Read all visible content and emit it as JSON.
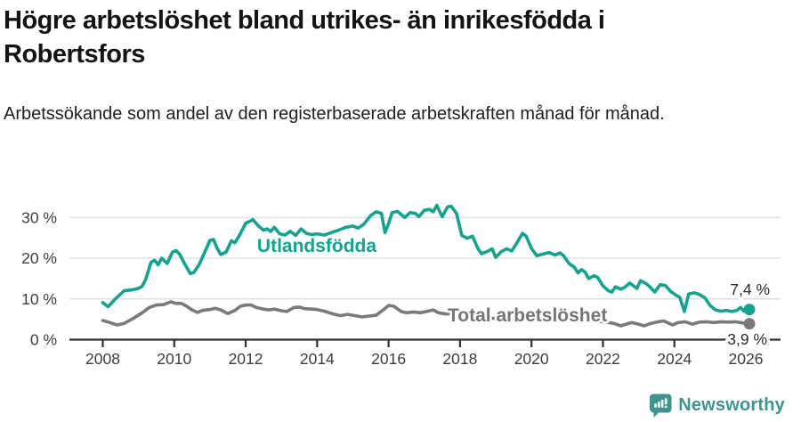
{
  "header": {
    "title": "Högre arbetslöshet bland utrikes- än inrikesfödda i Robertsfors",
    "subtitle": "Arbetssökande som andel av den registerbaserade arbetskraften månad för månad."
  },
  "chart_data": {
    "type": "line",
    "title": "Högre arbetslöshet bland utrikes- än inrikesfödda i Robertsfors",
    "subtitle": "Arbetssökande som andel av den registerbaserade arbetskraften månad för månad.",
    "unit": "%",
    "xlabel": "",
    "ylabel": "",
    "ylim": [
      0,
      35
    ],
    "xlim": [
      2007.1,
      2027.0
    ],
    "grid": true,
    "y_ticks": [
      0,
      10,
      20,
      30
    ],
    "y_tick_labels": [
      "0 %",
      "10 %",
      "20 %",
      "30 %"
    ],
    "x_ticks": [
      2008,
      2010,
      2012,
      2014,
      2016,
      2018,
      2020,
      2022,
      2024,
      2026
    ],
    "x_tick_labels": [
      "2008",
      "2010",
      "2012",
      "2014",
      "2016",
      "2018",
      "2020",
      "2022",
      "2024",
      "2026"
    ],
    "colors": {
      "gridline": "#d9d9d9",
      "baseline": "#303030",
      "axis_text": "#3d3d3d"
    },
    "series": [
      {
        "name": "Utlandsfödda",
        "color": "#14A38E",
        "end_label": "7,4 %",
        "end_value": 7.4,
        "points": [
          [
            2008.0,
            9.1
          ],
          [
            2008.15,
            8.1
          ],
          [
            2008.35,
            10.0
          ],
          [
            2008.6,
            12.0
          ],
          [
            2008.8,
            12.2
          ],
          [
            2009.0,
            12.6
          ],
          [
            2009.1,
            13.1
          ],
          [
            2009.2,
            14.8
          ],
          [
            2009.35,
            19.0
          ],
          [
            2009.45,
            19.5
          ],
          [
            2009.55,
            18.4
          ],
          [
            2009.65,
            20.0
          ],
          [
            2009.8,
            18.7
          ],
          [
            2009.95,
            21.5
          ],
          [
            2010.05,
            21.9
          ],
          [
            2010.15,
            21.0
          ],
          [
            2010.3,
            18.5
          ],
          [
            2010.45,
            16.2
          ],
          [
            2010.55,
            16.5
          ],
          [
            2010.7,
            18.5
          ],
          [
            2010.85,
            21.4
          ],
          [
            2011.0,
            24.4
          ],
          [
            2011.1,
            24.6
          ],
          [
            2011.2,
            22.5
          ],
          [
            2011.3,
            20.9
          ],
          [
            2011.45,
            21.5
          ],
          [
            2011.6,
            24.3
          ],
          [
            2011.7,
            23.8
          ],
          [
            2011.85,
            26.0
          ],
          [
            2012.0,
            28.6
          ],
          [
            2012.1,
            29.0
          ],
          [
            2012.2,
            29.5
          ],
          [
            2012.35,
            28.0
          ],
          [
            2012.5,
            26.9
          ],
          [
            2012.6,
            27.2
          ],
          [
            2012.7,
            26.6
          ],
          [
            2012.8,
            27.6
          ],
          [
            2012.95,
            26.0
          ],
          [
            2013.1,
            25.7
          ],
          [
            2013.25,
            26.6
          ],
          [
            2013.4,
            25.6
          ],
          [
            2013.55,
            27.2
          ],
          [
            2013.7,
            26.1
          ],
          [
            2013.85,
            25.8
          ],
          [
            2014.0,
            26.0
          ],
          [
            2014.2,
            25.7
          ],
          [
            2014.4,
            26.3
          ],
          [
            2014.6,
            26.9
          ],
          [
            2014.8,
            27.6
          ],
          [
            2015.0,
            27.9
          ],
          [
            2015.15,
            27.4
          ],
          [
            2015.3,
            28.3
          ],
          [
            2015.5,
            30.5
          ],
          [
            2015.65,
            31.4
          ],
          [
            2015.8,
            31.0
          ],
          [
            2015.9,
            26.3
          ],
          [
            2016.0,
            28.5
          ],
          [
            2016.1,
            31.2
          ],
          [
            2016.25,
            31.5
          ],
          [
            2016.45,
            30.0
          ],
          [
            2016.6,
            31.2
          ],
          [
            2016.75,
            31.0
          ],
          [
            2016.85,
            30.2
          ],
          [
            2017.0,
            31.8
          ],
          [
            2017.15,
            32.0
          ],
          [
            2017.25,
            31.4
          ],
          [
            2017.35,
            33.0
          ],
          [
            2017.5,
            30.2
          ],
          [
            2017.65,
            32.6
          ],
          [
            2017.75,
            32.8
          ],
          [
            2017.9,
            31.0
          ],
          [
            2018.05,
            25.6
          ],
          [
            2018.2,
            24.9
          ],
          [
            2018.35,
            25.4
          ],
          [
            2018.5,
            22.4
          ],
          [
            2018.6,
            21.1
          ],
          [
            2018.75,
            21.6
          ],
          [
            2018.9,
            22.3
          ],
          [
            2019.0,
            20.2
          ],
          [
            2019.15,
            21.6
          ],
          [
            2019.3,
            22.3
          ],
          [
            2019.45,
            21.8
          ],
          [
            2019.6,
            23.9
          ],
          [
            2019.75,
            26.1
          ],
          [
            2019.85,
            25.4
          ],
          [
            2020.0,
            22.4
          ],
          [
            2020.15,
            20.6
          ],
          [
            2020.3,
            21.0
          ],
          [
            2020.5,
            21.4
          ],
          [
            2020.65,
            20.8
          ],
          [
            2020.8,
            21.3
          ],
          [
            2020.9,
            20.6
          ],
          [
            2021.05,
            18.7
          ],
          [
            2021.2,
            17.8
          ],
          [
            2021.3,
            16.4
          ],
          [
            2021.4,
            17.2
          ],
          [
            2021.5,
            16.6
          ],
          [
            2021.6,
            15.0
          ],
          [
            2021.75,
            15.7
          ],
          [
            2021.85,
            15.3
          ],
          [
            2022.0,
            13.2
          ],
          [
            2022.15,
            12.0
          ],
          [
            2022.25,
            11.7
          ],
          [
            2022.35,
            13.0
          ],
          [
            2022.5,
            12.4
          ],
          [
            2022.6,
            12.8
          ],
          [
            2022.75,
            13.9
          ],
          [
            2022.95,
            12.6
          ],
          [
            2023.05,
            14.5
          ],
          [
            2023.2,
            13.8
          ],
          [
            2023.3,
            13.1
          ],
          [
            2023.45,
            11.7
          ],
          [
            2023.6,
            13.5
          ],
          [
            2023.75,
            13.3
          ],
          [
            2023.9,
            11.8
          ],
          [
            2024.05,
            10.9
          ],
          [
            2024.15,
            10.4
          ],
          [
            2024.28,
            6.9
          ],
          [
            2024.4,
            11.2
          ],
          [
            2024.55,
            11.5
          ],
          [
            2024.7,
            11.1
          ],
          [
            2024.85,
            10.3
          ],
          [
            2025.0,
            8.4
          ],
          [
            2025.15,
            7.3
          ],
          [
            2025.3,
            7.0
          ],
          [
            2025.45,
            7.2
          ],
          [
            2025.6,
            6.9
          ],
          [
            2025.75,
            7.2
          ],
          [
            2025.85,
            7.9
          ],
          [
            2025.95,
            7.0
          ],
          [
            2026.1,
            7.4
          ]
        ]
      },
      {
        "name": "Total arbetslöshet",
        "color": "#7A7A7A",
        "end_label": "3,9 %",
        "end_value": 3.9,
        "points": [
          [
            2008.0,
            4.7
          ],
          [
            2008.2,
            4.2
          ],
          [
            2008.4,
            3.6
          ],
          [
            2008.6,
            4.0
          ],
          [
            2008.85,
            5.2
          ],
          [
            2009.1,
            6.6
          ],
          [
            2009.3,
            7.9
          ],
          [
            2009.5,
            8.5
          ],
          [
            2009.7,
            8.6
          ],
          [
            2009.9,
            9.3
          ],
          [
            2010.05,
            8.9
          ],
          [
            2010.2,
            8.9
          ],
          [
            2010.35,
            8.2
          ],
          [
            2010.5,
            7.3
          ],
          [
            2010.65,
            6.7
          ],
          [
            2010.8,
            7.2
          ],
          [
            2011.0,
            7.4
          ],
          [
            2011.15,
            7.7
          ],
          [
            2011.3,
            7.3
          ],
          [
            2011.5,
            6.4
          ],
          [
            2011.7,
            7.2
          ],
          [
            2011.85,
            8.2
          ],
          [
            2012.0,
            8.5
          ],
          [
            2012.15,
            8.5
          ],
          [
            2012.3,
            7.9
          ],
          [
            2012.5,
            7.5
          ],
          [
            2012.65,
            7.3
          ],
          [
            2012.8,
            7.5
          ],
          [
            2013.0,
            7.1
          ],
          [
            2013.15,
            6.9
          ],
          [
            2013.35,
            7.9
          ],
          [
            2013.5,
            8.0
          ],
          [
            2013.65,
            7.6
          ],
          [
            2013.85,
            7.5
          ],
          [
            2014.0,
            7.4
          ],
          [
            2014.2,
            7.0
          ],
          [
            2014.45,
            6.3
          ],
          [
            2014.65,
            5.9
          ],
          [
            2014.85,
            6.2
          ],
          [
            2015.05,
            5.9
          ],
          [
            2015.25,
            5.6
          ],
          [
            2015.45,
            5.8
          ],
          [
            2015.65,
            6.0
          ],
          [
            2015.85,
            7.3
          ],
          [
            2016.0,
            8.4
          ],
          [
            2016.15,
            8.2
          ],
          [
            2016.35,
            6.9
          ],
          [
            2016.5,
            6.6
          ],
          [
            2016.7,
            6.8
          ],
          [
            2016.9,
            6.6
          ],
          [
            2017.1,
            7.0
          ],
          [
            2017.25,
            7.3
          ],
          [
            2017.4,
            6.6
          ],
          [
            2017.6,
            6.3
          ],
          [
            2017.8,
            6.4
          ],
          [
            2018.0,
            6.0
          ],
          [
            2018.3,
            5.8
          ],
          [
            2018.6,
            5.4
          ],
          [
            2019.0,
            5.2
          ],
          [
            2019.4,
            5.0
          ],
          [
            2019.8,
            5.1
          ],
          [
            2020.2,
            5.8
          ],
          [
            2020.5,
            6.0
          ],
          [
            2020.8,
            5.7
          ],
          [
            2021.2,
            5.2
          ],
          [
            2021.6,
            4.8
          ],
          [
            2022.0,
            4.4
          ],
          [
            2022.3,
            4.0
          ],
          [
            2022.5,
            3.4
          ],
          [
            2022.65,
            3.8
          ],
          [
            2022.8,
            4.2
          ],
          [
            2023.0,
            3.8
          ],
          [
            2023.15,
            3.4
          ],
          [
            2023.35,
            4.0
          ],
          [
            2023.55,
            4.4
          ],
          [
            2023.7,
            4.6
          ],
          [
            2023.85,
            4.0
          ],
          [
            2023.95,
            3.6
          ],
          [
            2024.1,
            4.2
          ],
          [
            2024.3,
            4.4
          ],
          [
            2024.5,
            3.8
          ],
          [
            2024.7,
            4.3
          ],
          [
            2024.9,
            4.4
          ],
          [
            2025.1,
            4.2
          ],
          [
            2025.3,
            4.4
          ],
          [
            2025.5,
            4.3
          ],
          [
            2025.7,
            4.4
          ],
          [
            2025.85,
            4.2
          ],
          [
            2026.0,
            4.0
          ],
          [
            2026.1,
            3.9
          ]
        ]
      }
    ],
    "legend_position": "on-line-labels"
  },
  "footer": {
    "brand": "Newsworthy",
    "brand_color": "#3F948F",
    "logo_icon": "newsworthy-speech-bubble-bar-chart-icon"
  }
}
